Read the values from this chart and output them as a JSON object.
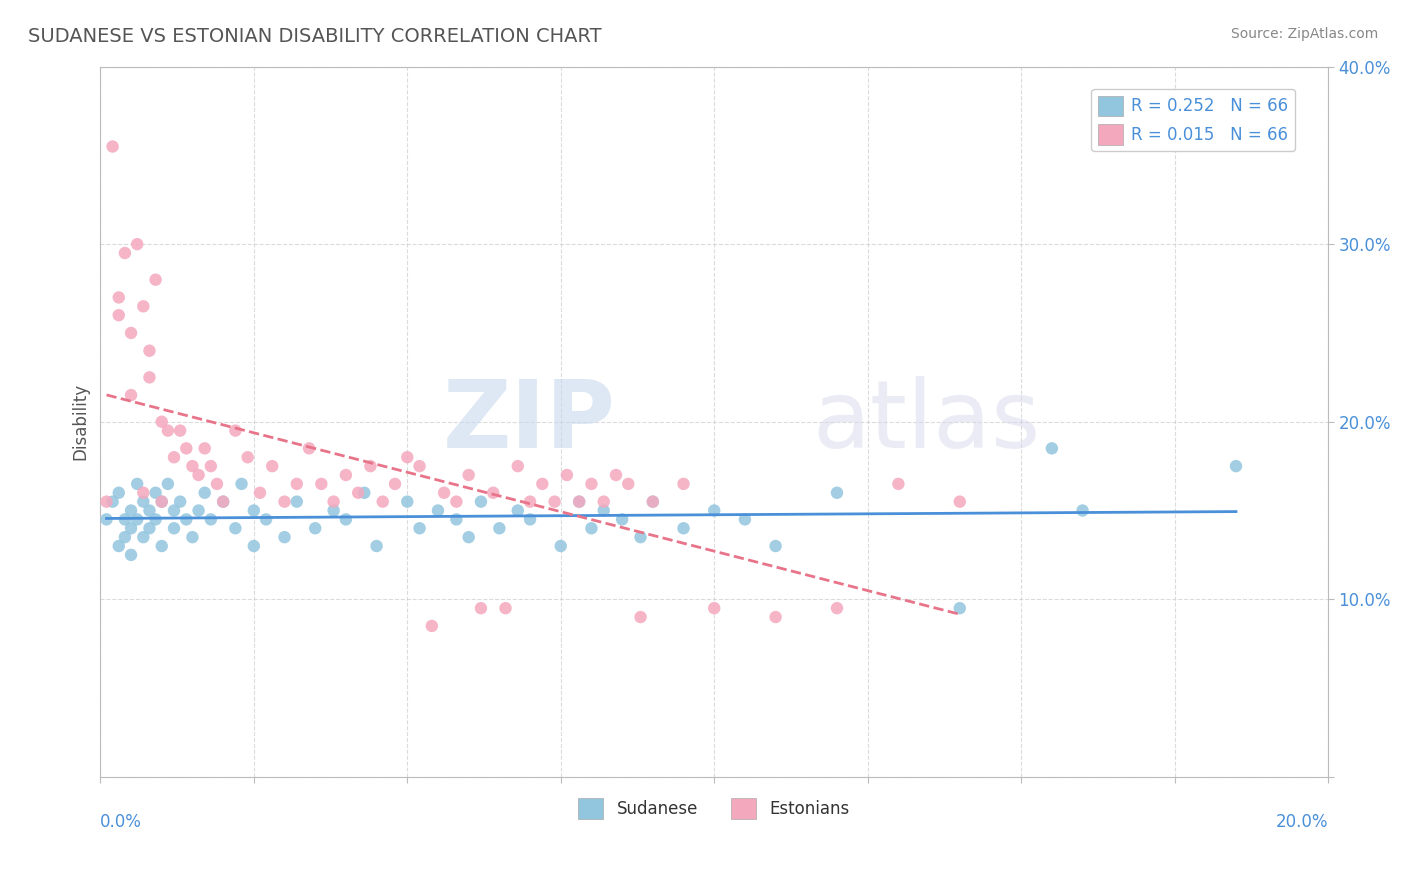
{
  "title": "SUDANESE VS ESTONIAN DISABILITY CORRELATION CHART",
  "source": "Source: ZipAtlas.com",
  "ylabel": "Disability",
  "xlim": [
    0.0,
    0.2
  ],
  "ylim": [
    0.0,
    0.4
  ],
  "yticks": [
    0.0,
    0.1,
    0.2,
    0.3,
    0.4
  ],
  "ytick_labels": [
    "",
    "10.0%",
    "20.0%",
    "30.0%",
    "40.0%"
  ],
  "xticks": [
    0.0,
    0.025,
    0.05,
    0.075,
    0.1,
    0.125,
    0.15,
    0.175,
    0.2
  ],
  "legend_r1": "R = 0.252   N = 66",
  "legend_r2": "R = 0.015   N = 66",
  "color_sudanese": "#92C5DE",
  "color_estonians": "#F4A8BE",
  "color_line_sudanese": "#4A90D9",
  "color_line_estonians": "#E8748A",
  "sudanese_x": [
    0.001,
    0.002,
    0.003,
    0.003,
    0.004,
    0.004,
    0.005,
    0.005,
    0.005,
    0.006,
    0.006,
    0.007,
    0.007,
    0.008,
    0.008,
    0.009,
    0.009,
    0.01,
    0.01,
    0.011,
    0.012,
    0.012,
    0.013,
    0.014,
    0.015,
    0.016,
    0.017,
    0.018,
    0.02,
    0.022,
    0.023,
    0.025,
    0.025,
    0.027,
    0.03,
    0.032,
    0.035,
    0.038,
    0.04,
    0.043,
    0.045,
    0.05,
    0.052,
    0.055,
    0.058,
    0.06,
    0.062,
    0.065,
    0.068,
    0.07,
    0.075,
    0.078,
    0.08,
    0.082,
    0.085,
    0.088,
    0.09,
    0.095,
    0.1,
    0.105,
    0.11,
    0.12,
    0.14,
    0.155,
    0.16,
    0.185
  ],
  "sudanese_y": [
    0.145,
    0.155,
    0.13,
    0.16,
    0.145,
    0.135,
    0.15,
    0.14,
    0.125,
    0.165,
    0.145,
    0.155,
    0.135,
    0.15,
    0.14,
    0.16,
    0.145,
    0.155,
    0.13,
    0.165,
    0.14,
    0.15,
    0.155,
    0.145,
    0.135,
    0.15,
    0.16,
    0.145,
    0.155,
    0.14,
    0.165,
    0.13,
    0.15,
    0.145,
    0.135,
    0.155,
    0.14,
    0.15,
    0.145,
    0.16,
    0.13,
    0.155,
    0.14,
    0.15,
    0.145,
    0.135,
    0.155,
    0.14,
    0.15,
    0.145,
    0.13,
    0.155,
    0.14,
    0.15,
    0.145,
    0.135,
    0.155,
    0.14,
    0.15,
    0.145,
    0.13,
    0.16,
    0.095,
    0.185,
    0.15,
    0.175
  ],
  "estonians_x": [
    0.001,
    0.002,
    0.003,
    0.003,
    0.004,
    0.005,
    0.005,
    0.006,
    0.007,
    0.007,
    0.008,
    0.008,
    0.009,
    0.01,
    0.01,
    0.011,
    0.012,
    0.013,
    0.014,
    0.015,
    0.016,
    0.017,
    0.018,
    0.019,
    0.02,
    0.022,
    0.024,
    0.026,
    0.028,
    0.03,
    0.032,
    0.034,
    0.036,
    0.038,
    0.04,
    0.042,
    0.044,
    0.046,
    0.048,
    0.05,
    0.052,
    0.054,
    0.056,
    0.058,
    0.06,
    0.062,
    0.064,
    0.066,
    0.068,
    0.07,
    0.072,
    0.074,
    0.076,
    0.078,
    0.08,
    0.082,
    0.084,
    0.086,
    0.088,
    0.09,
    0.095,
    0.1,
    0.11,
    0.12,
    0.13,
    0.14
  ],
  "estonians_y": [
    0.155,
    0.355,
    0.27,
    0.26,
    0.295,
    0.25,
    0.215,
    0.3,
    0.265,
    0.16,
    0.24,
    0.225,
    0.28,
    0.2,
    0.155,
    0.195,
    0.18,
    0.195,
    0.185,
    0.175,
    0.17,
    0.185,
    0.175,
    0.165,
    0.155,
    0.195,
    0.18,
    0.16,
    0.175,
    0.155,
    0.165,
    0.185,
    0.165,
    0.155,
    0.17,
    0.16,
    0.175,
    0.155,
    0.165,
    0.18,
    0.175,
    0.085,
    0.16,
    0.155,
    0.17,
    0.095,
    0.16,
    0.095,
    0.175,
    0.155,
    0.165,
    0.155,
    0.17,
    0.155,
    0.165,
    0.155,
    0.17,
    0.165,
    0.09,
    0.155,
    0.165,
    0.095,
    0.09,
    0.095,
    0.165,
    0.155
  ]
}
